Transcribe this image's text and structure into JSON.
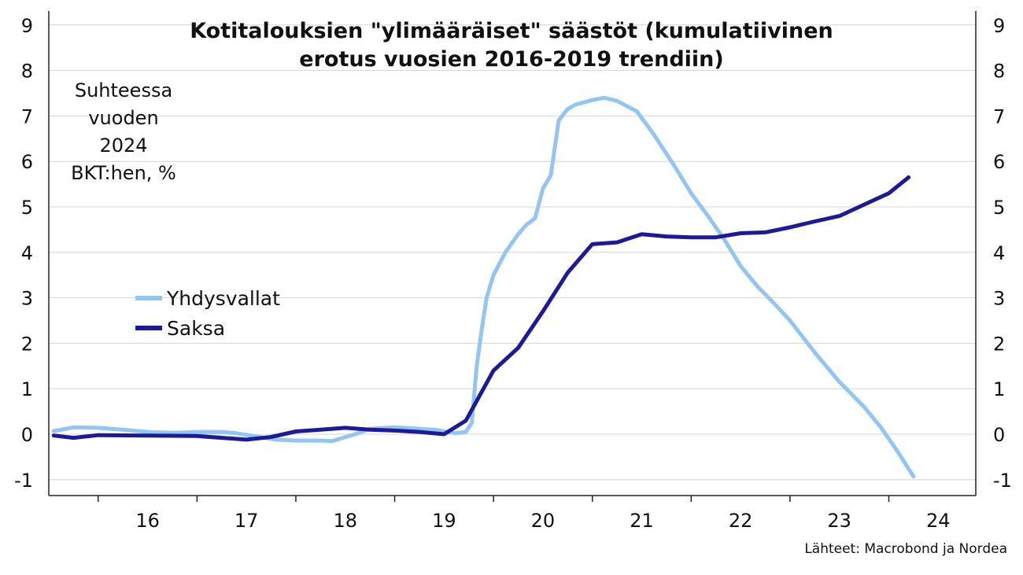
{
  "chart_data": {
    "type": "line",
    "title_line1": "Kotitalouksien \"ylimääräiset\" säästöt (kumulatiivinen",
    "title_line2": "erotus vuosien 2016-2019 trendiin)",
    "unit_lines": [
      "Suhteessa",
      "vuoden",
      "2024",
      "BKT:hen, %"
    ],
    "source": "Lähteet: Macrobond ja Nordea",
    "ylim": [
      -1,
      9
    ],
    "y_ticks": [
      -1,
      0,
      1,
      2,
      3,
      4,
      5,
      6,
      7,
      8,
      9
    ],
    "y_tick_labels": [
      "-1",
      "0",
      "1",
      "2",
      "3",
      "4",
      "5",
      "6",
      "7",
      "8",
      "9"
    ],
    "xlim": [
      2015.5,
      2024.88
    ],
    "x_ticks": [
      2016,
      2017,
      2018,
      2019,
      2020,
      2021,
      2022,
      2023,
      2024
    ],
    "x_tick_labels": [
      "16",
      "17",
      "18",
      "19",
      "20",
      "21",
      "22",
      "23",
      "24"
    ],
    "grid": "horizontal",
    "legend_position": "left-middle",
    "series": [
      {
        "name": "Yhdysvallat",
        "color": "#93c5f3",
        "points": [
          [
            2015.55,
            0.07
          ],
          [
            2015.75,
            0.15
          ],
          [
            2016.0,
            0.14
          ],
          [
            2016.25,
            0.1
          ],
          [
            2016.5,
            0.05
          ],
          [
            2016.75,
            0.03
          ],
          [
            2017.0,
            0.05
          ],
          [
            2017.25,
            0.05
          ],
          [
            2017.4,
            0.02
          ],
          [
            2017.6,
            -0.05
          ],
          [
            2017.8,
            -0.12
          ],
          [
            2018.0,
            -0.14
          ],
          [
            2018.25,
            -0.14
          ],
          [
            2018.37,
            -0.15
          ],
          [
            2018.6,
            0.0
          ],
          [
            2018.75,
            0.12
          ],
          [
            2019.0,
            0.15
          ],
          [
            2019.25,
            0.12
          ],
          [
            2019.4,
            0.1
          ],
          [
            2019.62,
            0.02
          ],
          [
            2019.72,
            0.05
          ],
          [
            2019.78,
            0.25
          ],
          [
            2019.83,
            1.5
          ],
          [
            2019.88,
            2.3
          ],
          [
            2019.93,
            3.0
          ],
          [
            2020.0,
            3.5
          ],
          [
            2020.12,
            4.0
          ],
          [
            2020.25,
            4.4
          ],
          [
            2020.33,
            4.6
          ],
          [
            2020.42,
            4.75
          ],
          [
            2020.5,
            5.4
          ],
          [
            2020.58,
            5.7
          ],
          [
            2020.66,
            6.9
          ],
          [
            2020.75,
            7.15
          ],
          [
            2020.83,
            7.25
          ],
          [
            2021.0,
            7.35
          ],
          [
            2021.12,
            7.4
          ],
          [
            2021.25,
            7.33
          ],
          [
            2021.45,
            7.1
          ],
          [
            2021.62,
            6.6
          ],
          [
            2021.83,
            5.9
          ],
          [
            2022.0,
            5.3
          ],
          [
            2022.17,
            4.8
          ],
          [
            2022.33,
            4.3
          ],
          [
            2022.5,
            3.7
          ],
          [
            2022.67,
            3.25
          ],
          [
            2022.83,
            2.9
          ],
          [
            2023.0,
            2.5
          ],
          [
            2023.25,
            1.8
          ],
          [
            2023.5,
            1.15
          ],
          [
            2023.75,
            0.6
          ],
          [
            2023.92,
            0.15
          ],
          [
            2024.08,
            -0.35
          ],
          [
            2024.25,
            -0.93
          ]
        ]
      },
      {
        "name": "Saksa",
        "color": "#1c1a99",
        "points": [
          [
            2015.55,
            -0.03
          ],
          [
            2015.75,
            -0.08
          ],
          [
            2016.0,
            -0.02
          ],
          [
            2016.5,
            -0.03
          ],
          [
            2017.0,
            -0.04
          ],
          [
            2017.5,
            -0.12
          ],
          [
            2017.75,
            -0.06
          ],
          [
            2018.0,
            0.06
          ],
          [
            2018.25,
            0.1
          ],
          [
            2018.5,
            0.14
          ],
          [
            2018.75,
            0.1
          ],
          [
            2019.0,
            0.08
          ],
          [
            2019.25,
            0.05
          ],
          [
            2019.5,
            0.0
          ],
          [
            2019.72,
            0.3
          ],
          [
            2020.0,
            1.4
          ],
          [
            2020.25,
            1.9
          ],
          [
            2020.5,
            2.7
          ],
          [
            2020.75,
            3.55
          ],
          [
            2021.0,
            4.18
          ],
          [
            2021.25,
            4.22
          ],
          [
            2021.5,
            4.4
          ],
          [
            2021.75,
            4.35
          ],
          [
            2022.0,
            4.33
          ],
          [
            2022.25,
            4.33
          ],
          [
            2022.5,
            4.42
          ],
          [
            2022.75,
            4.44
          ],
          [
            2023.0,
            4.55
          ],
          [
            2023.25,
            4.68
          ],
          [
            2023.5,
            4.8
          ],
          [
            2023.75,
            5.05
          ],
          [
            2024.0,
            5.3
          ],
          [
            2024.2,
            5.65
          ]
        ]
      }
    ]
  }
}
